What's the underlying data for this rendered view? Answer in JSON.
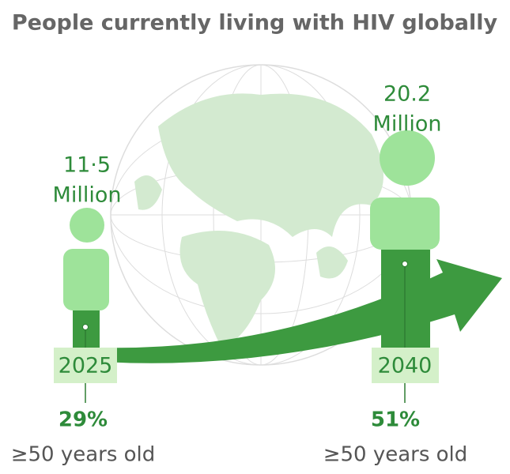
{
  "title": "People currently  living with HIV globally",
  "left": {
    "amount": "11·5",
    "unit": "Million",
    "year": "2025",
    "share": "29%",
    "caption": "≥50 years old"
  },
  "right": {
    "amount": "20.2",
    "unit": "Million",
    "year": "2040",
    "share": "51%",
    "caption": "≥50 years old"
  }
}
